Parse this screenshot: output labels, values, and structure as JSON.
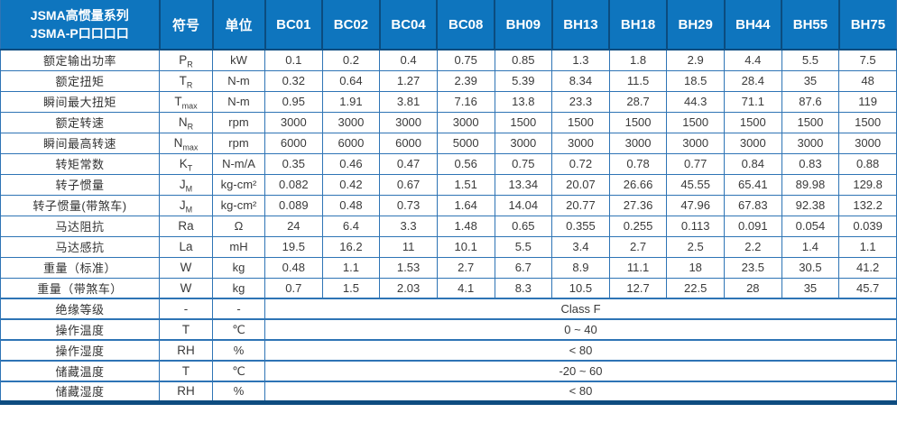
{
  "colors": {
    "header_bg": "#0E75BE",
    "header_divider": "#0B4C7F",
    "cell_border": "#2E74B5",
    "bottom_bar": "#0E4C80",
    "header_text": "#FFFFFF",
    "body_text": "#3A3A3A"
  },
  "table": {
    "header": {
      "title_line1": "JSMA高惯量系列",
      "title_line2": "JSMA-P口口口口",
      "symbol_col": "符号",
      "unit_col": "单位",
      "models": [
        "BC01",
        "BC02",
        "BC04",
        "BC08",
        "BH09",
        "BH13",
        "BH18",
        "BH29",
        "BH44",
        "BH55",
        "BH75"
      ]
    },
    "rows": [
      {
        "label": "额定输出功率",
        "symbol": {
          "base": "P",
          "sub": "R"
        },
        "unit": "kW",
        "values": [
          "0.1",
          "0.2",
          "0.4",
          "0.75",
          "0.85",
          "1.3",
          "1.8",
          "2.9",
          "4.4",
          "5.5",
          "7.5"
        ]
      },
      {
        "label": "额定扭矩",
        "symbol": {
          "base": "T",
          "sub": "R"
        },
        "unit": "N-m",
        "values": [
          "0.32",
          "0.64",
          "1.27",
          "2.39",
          "5.39",
          "8.34",
          "11.5",
          "18.5",
          "28.4",
          "35",
          "48"
        ]
      },
      {
        "label": "瞬间最大扭矩",
        "symbol": {
          "base": "T",
          "sub": "max"
        },
        "unit": "N-m",
        "values": [
          "0.95",
          "1.91",
          "3.81",
          "7.16",
          "13.8",
          "23.3",
          "28.7",
          "44.3",
          "71.1",
          "87.6",
          "119"
        ]
      },
      {
        "label": "额定转速",
        "symbol": {
          "base": "N",
          "sub": "R"
        },
        "unit": "rpm",
        "values": [
          "3000",
          "3000",
          "3000",
          "3000",
          "1500",
          "1500",
          "1500",
          "1500",
          "1500",
          "1500",
          "1500"
        ]
      },
      {
        "label": "瞬间最高转速",
        "symbol": {
          "base": "N",
          "sub": "max"
        },
        "unit": "rpm",
        "values": [
          "6000",
          "6000",
          "6000",
          "5000",
          "3000",
          "3000",
          "3000",
          "3000",
          "3000",
          "3000",
          "3000"
        ]
      },
      {
        "label": "转矩常数",
        "symbol": {
          "base": "K",
          "sub": "T"
        },
        "unit": "N-m/A",
        "values": [
          "0.35",
          "0.46",
          "0.47",
          "0.56",
          "0.75",
          "0.72",
          "0.78",
          "0.77",
          "0.84",
          "0.83",
          "0.88"
        ]
      },
      {
        "label": "转子惯量",
        "symbol": {
          "base": "J",
          "sub": "M"
        },
        "unit": "kg-cm²",
        "values": [
          "0.082",
          "0.42",
          "0.67",
          "1.51",
          "13.34",
          "20.07",
          "26.66",
          "45.55",
          "65.41",
          "89.98",
          "129.8"
        ]
      },
      {
        "label": "转子惯量(带煞车)",
        "symbol": {
          "base": "J",
          "sub": "M"
        },
        "unit": "kg-cm²",
        "values": [
          "0.089",
          "0.48",
          "0.73",
          "1.64",
          "14.04",
          "20.77",
          "27.36",
          "47.96",
          "67.83",
          "92.38",
          "132.2"
        ]
      },
      {
        "label": "马达阻抗",
        "symbol": {
          "base": "Ra",
          "sub": ""
        },
        "unit": "Ω",
        "values": [
          "24",
          "6.4",
          "3.3",
          "1.48",
          "0.65",
          "0.355",
          "0.255",
          "0.113",
          "0.091",
          "0.054",
          "0.039"
        ]
      },
      {
        "label": "马达感抗",
        "symbol": {
          "base": "La",
          "sub": ""
        },
        "unit": "mH",
        "values": [
          "19.5",
          "16.2",
          "11",
          "10.1",
          "5.5",
          "3.4",
          "2.7",
          "2.5",
          "2.2",
          "1.4",
          "1.1"
        ]
      },
      {
        "label": "重量（标准）",
        "symbol": {
          "base": "W",
          "sub": ""
        },
        "unit": "kg",
        "values": [
          "0.48",
          "1.1",
          "1.53",
          "2.7",
          "6.7",
          "8.9",
          "11.1",
          "18",
          "23.5",
          "30.5",
          "41.2"
        ]
      },
      {
        "label": "重量（带煞车）",
        "symbol": {
          "base": "W",
          "sub": ""
        },
        "unit": "kg",
        "values": [
          "0.7",
          "1.5",
          "2.03",
          "4.1",
          "8.3",
          "10.5",
          "12.7",
          "22.5",
          "28",
          "35",
          "45.7"
        ]
      }
    ],
    "merged_rows": [
      {
        "label": "绝缘等级",
        "symbol": "-",
        "unit": "-",
        "value": "Class F"
      },
      {
        "label": "操作温度",
        "symbol": "T",
        "unit": "℃",
        "value": "0 ~ 40"
      },
      {
        "label": "操作湿度",
        "symbol": "RH",
        "unit": "%",
        "value": "< 80"
      },
      {
        "label": "储藏温度",
        "symbol": "T",
        "unit": "℃",
        "value": "-20 ~ 60"
      },
      {
        "label": "储藏湿度",
        "symbol": "RH",
        "unit": "%",
        "value": "< 80"
      }
    ]
  }
}
